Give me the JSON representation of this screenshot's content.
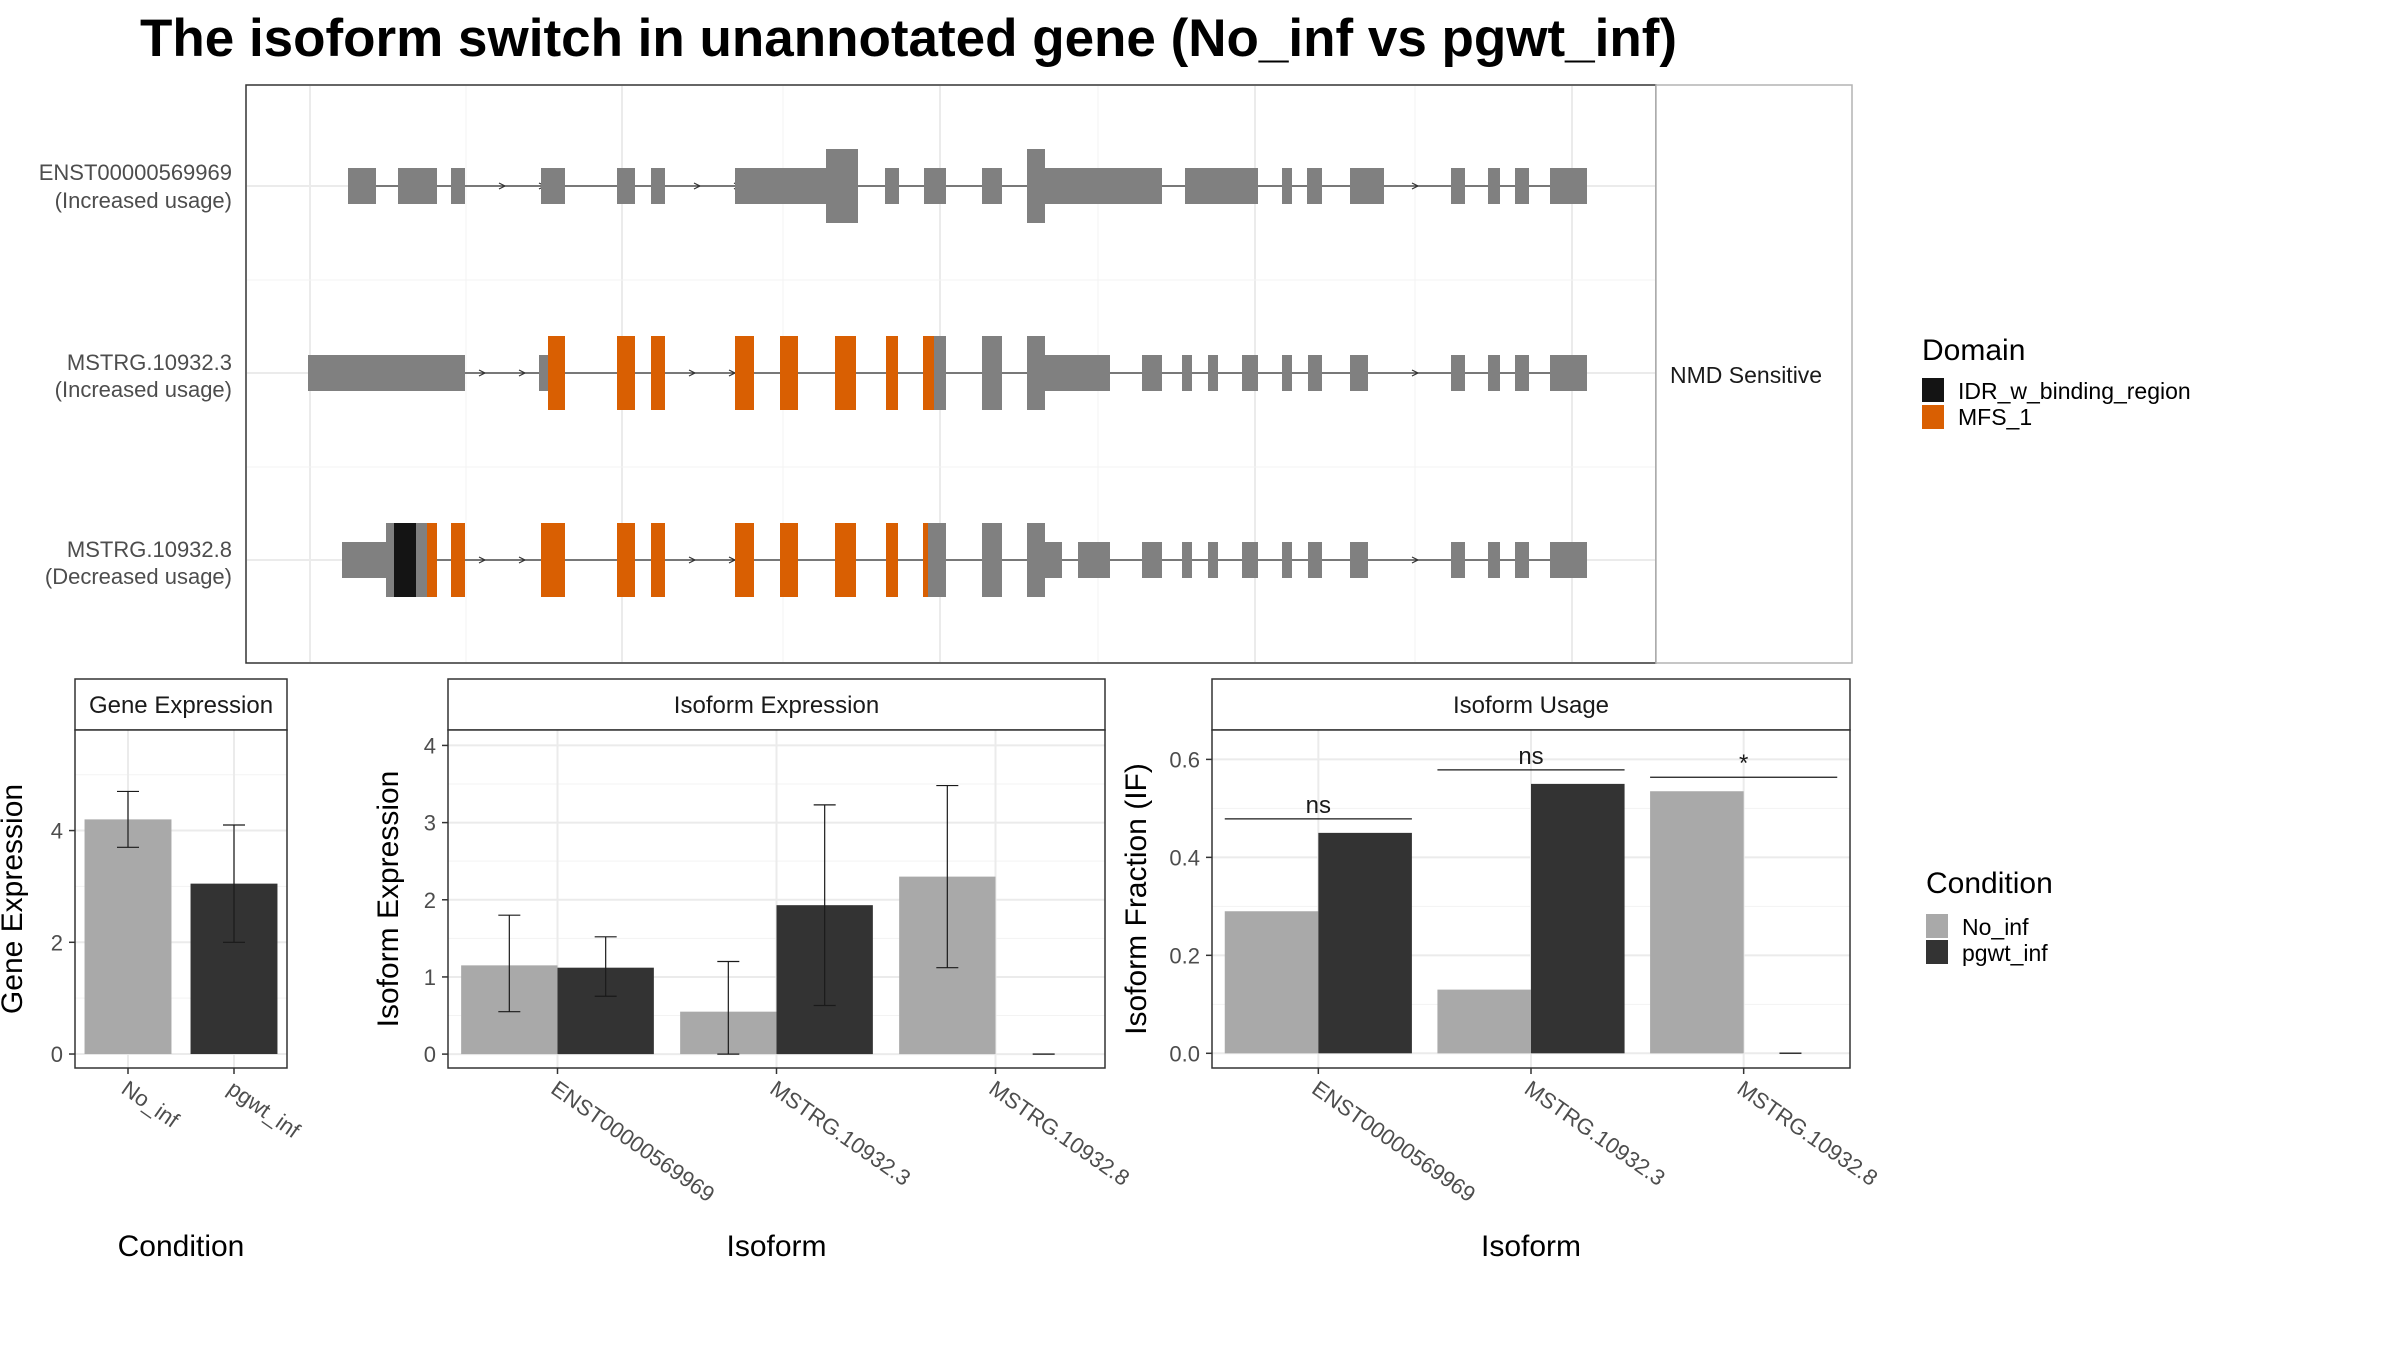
{
  "title": "The isoform switch in unannotated gene (No_inf vs pgwt_inf)",
  "colors": {
    "no_inf": "#a9a9a9",
    "pgwt_inf": "#333333",
    "exon": "#808080",
    "mfs": "#d95f02",
    "idr": "#141414",
    "grid": "#ebebeb",
    "panel_border": "#333333"
  },
  "structure": {
    "isoforms": [
      {
        "name": "ENST00000569969",
        "usage": "(Increased usage)",
        "side_label": ""
      },
      {
        "name": "MSTRG.10932.3",
        "usage": "(Increased usage)",
        "side_label": "NMD Sensitive"
      },
      {
        "name": "MSTRG.10932.8",
        "usage": "(Decreased usage)",
        "side_label": ""
      }
    ],
    "domain_legend": {
      "title": "Domain",
      "items": [
        {
          "label": "IDR_w_binding_region",
          "color": "#141414"
        },
        {
          "label": "MFS_1",
          "color": "#d95f02"
        }
      ]
    }
  },
  "condition_legend": {
    "title": "Condition",
    "items": [
      {
        "label": "No_inf",
        "color": "#a9a9a9"
      },
      {
        "label": "pgwt_inf",
        "color": "#333333"
      }
    ]
  },
  "chart_data": [
    {
      "type": "bar",
      "strip": "Gene Expression",
      "ylabel": "Gene Expression",
      "xlabel": "Condition",
      "categories": [
        "No_inf",
        "pgwt_inf"
      ],
      "values": [
        4.2,
        3.05
      ],
      "errors": [
        [
          3.7,
          4.7
        ],
        [
          2.0,
          4.1
        ]
      ],
      "ylim": [
        -0.25,
        5.8
      ],
      "yticks": [
        0,
        2,
        4
      ]
    },
    {
      "type": "bar",
      "strip": "Isoform Expression",
      "ylabel": "Isoform Expression",
      "xlabel": "Isoform",
      "categories": [
        "ENST00000569969",
        "MSTRG.10932.3",
        "MSTRG.10932.8"
      ],
      "series": [
        {
          "name": "No_inf",
          "values": [
            1.15,
            0.55,
            2.3
          ],
          "errors": [
            [
              0.55,
              1.8
            ],
            [
              0.0,
              1.2
            ],
            [
              1.12,
              3.48
            ]
          ]
        },
        {
          "name": "pgwt_inf",
          "values": [
            1.12,
            1.93,
            0.0
          ],
          "errors": [
            [
              0.75,
              1.52
            ],
            [
              0.63,
              3.23
            ],
            [
              0.0,
              0.0
            ]
          ]
        }
      ],
      "ylim": [
        -0.18,
        4.2
      ],
      "yticks": [
        0,
        1,
        2,
        3,
        4
      ]
    },
    {
      "type": "bar",
      "strip": "Isoform Usage",
      "ylabel": "Isoform Fraction (IF)",
      "xlabel": "Isoform",
      "categories": [
        "ENST00000569969",
        "MSTRG.10932.3",
        "MSTRG.10932.8"
      ],
      "series": [
        {
          "name": "No_inf",
          "values": [
            0.29,
            0.13,
            0.535
          ]
        },
        {
          "name": "pgwt_inf",
          "values": [
            0.45,
            0.55,
            0.0
          ]
        }
      ],
      "significance": [
        "ns",
        "ns",
        "*"
      ],
      "ylim": [
        -0.03,
        0.66
      ],
      "yticks": [
        "0.0",
        "0.2",
        "0.4",
        "0.6"
      ]
    }
  ]
}
